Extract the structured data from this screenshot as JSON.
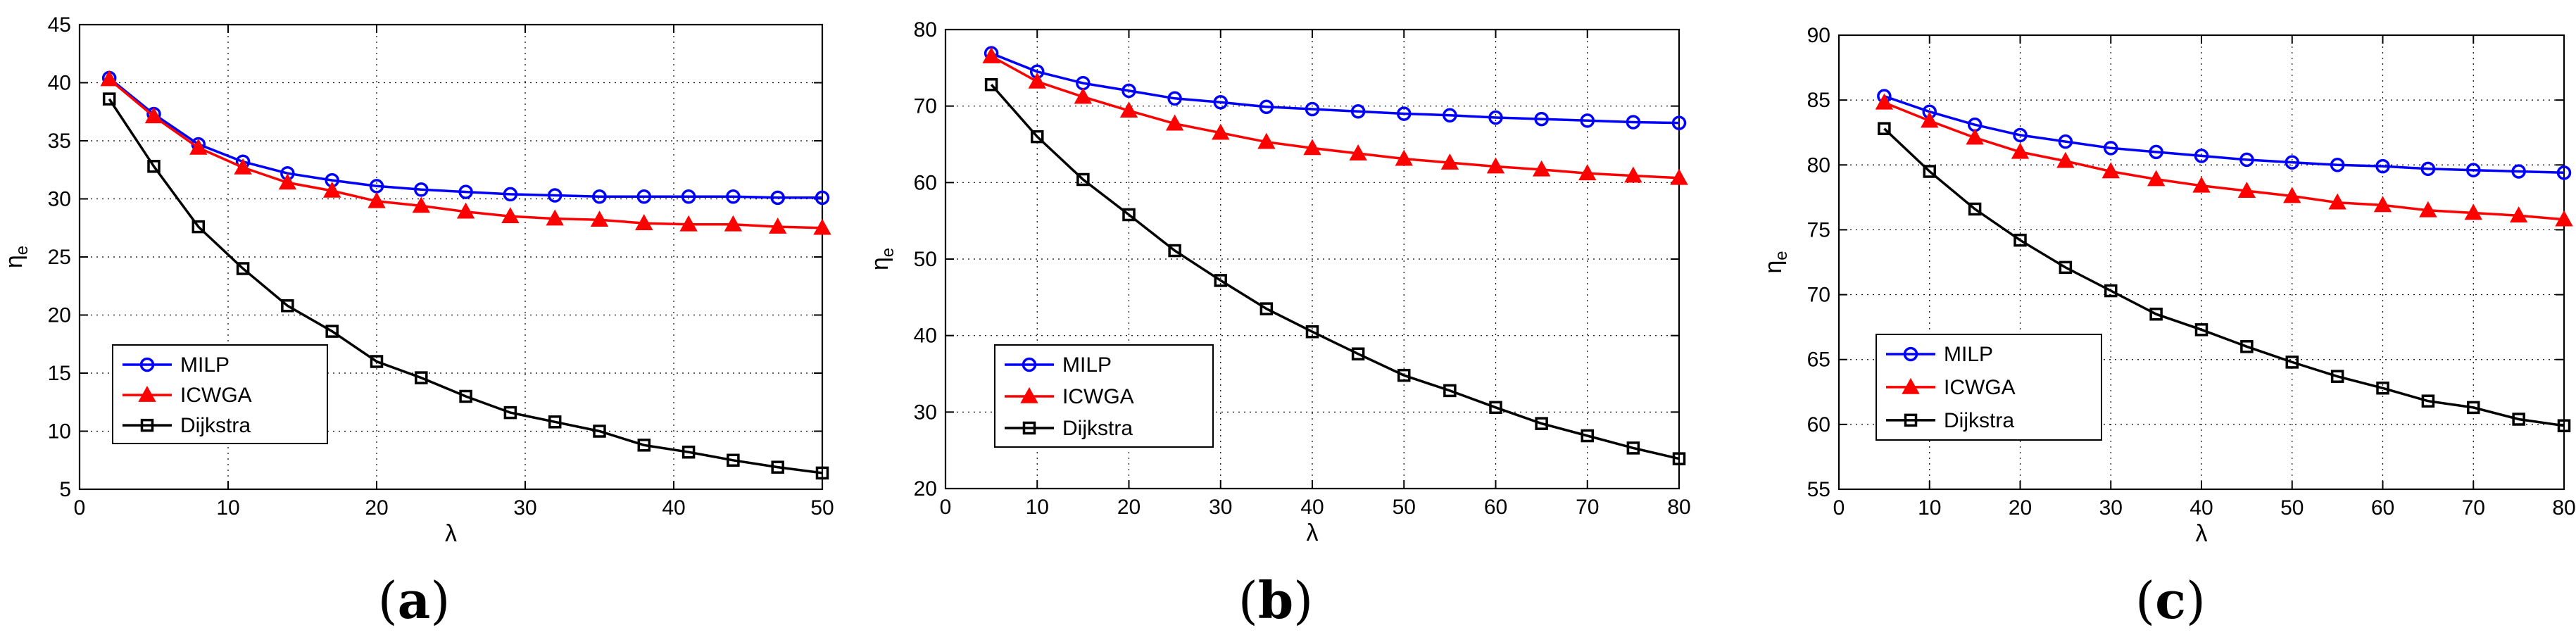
{
  "chart_data": [
    {
      "type": "line",
      "caption": {
        "open": "(",
        "letter": "a",
        "close": ")"
      },
      "xlabel": "λ",
      "ylabel": {
        "base": "η",
        "sub": "e"
      },
      "xlim": [
        0,
        50
      ],
      "ylim": [
        5,
        45
      ],
      "xticks": [
        0,
        10,
        20,
        30,
        40,
        50
      ],
      "yticks": [
        5,
        10,
        15,
        20,
        25,
        30,
        35,
        40,
        45
      ],
      "grid": true,
      "legend": "bottom-left",
      "x": [
        2,
        5,
        8,
        11,
        14,
        17,
        20,
        23,
        26,
        29,
        32,
        35,
        38,
        41,
        44,
        47,
        50
      ],
      "series": [
        {
          "name": "MILP",
          "color": "#0000ff",
          "marker": "circle",
          "values": [
            40.4,
            37.3,
            34.7,
            33.2,
            32.2,
            31.6,
            31.1,
            30.8,
            30.6,
            30.4,
            30.3,
            30.2,
            30.2,
            30.2,
            30.2,
            30.1,
            30.1
          ]
        },
        {
          "name": "ICWGA",
          "color": "#ff0000",
          "marker": "triangle",
          "values": [
            40.3,
            37.1,
            34.4,
            32.7,
            31.4,
            30.7,
            29.8,
            29.4,
            28.9,
            28.5,
            28.3,
            28.2,
            27.9,
            27.8,
            27.8,
            27.6,
            27.5
          ]
        },
        {
          "name": "Dijkstra",
          "color": "#000000",
          "marker": "square",
          "values": [
            38.6,
            32.8,
            27.6,
            24.0,
            20.8,
            18.6,
            16.0,
            14.6,
            13.0,
            11.6,
            10.8,
            10.0,
            8.8,
            8.2,
            7.5,
            6.9,
            6.4
          ]
        }
      ]
    },
    {
      "type": "line",
      "caption": {
        "open": "(",
        "letter": "b",
        "close": ")"
      },
      "xlabel": "λ",
      "ylabel": {
        "base": "η",
        "sub": "e"
      },
      "xlim": [
        0,
        80
      ],
      "ylim": [
        20,
        80
      ],
      "xticks": [
        0,
        10,
        20,
        30,
        40,
        50,
        60,
        70,
        80
      ],
      "yticks": [
        20,
        30,
        40,
        50,
        60,
        70,
        80
      ],
      "grid": true,
      "legend": "bottom-left",
      "x": [
        5,
        10,
        15,
        20,
        25,
        30,
        35,
        40,
        45,
        50,
        55,
        60,
        65,
        70,
        75,
        80
      ],
      "series": [
        {
          "name": "MILP",
          "color": "#0000ff",
          "marker": "circle",
          "values": [
            76.9,
            74.5,
            73.0,
            72.0,
            71.0,
            70.5,
            69.9,
            69.6,
            69.3,
            69.0,
            68.8,
            68.5,
            68.3,
            68.1,
            67.9,
            67.8
          ]
        },
        {
          "name": "ICWGA",
          "color": "#ff0000",
          "marker": "triangle",
          "values": [
            76.5,
            73.2,
            71.2,
            69.4,
            67.7,
            66.5,
            65.3,
            64.5,
            63.8,
            63.1,
            62.6,
            62.1,
            61.7,
            61.2,
            60.9,
            60.6
          ]
        },
        {
          "name": "Dijkstra",
          "color": "#000000",
          "marker": "square",
          "values": [
            72.8,
            66.0,
            60.4,
            55.8,
            51.1,
            47.2,
            43.5,
            40.5,
            37.6,
            34.8,
            32.8,
            30.6,
            28.5,
            26.9,
            25.3,
            23.9
          ]
        }
      ]
    },
    {
      "type": "line",
      "caption": {
        "open": "(",
        "letter": "c",
        "close": ")"
      },
      "xlabel": "λ",
      "ylabel": {
        "base": "η",
        "sub": "e"
      },
      "xlim": [
        0,
        80
      ],
      "ylim": [
        55,
        90
      ],
      "xticks": [
        0,
        10,
        20,
        30,
        40,
        50,
        60,
        70,
        80
      ],
      "yticks": [
        55,
        60,
        65,
        70,
        75,
        80,
        85,
        90
      ],
      "grid": true,
      "legend": "bottom-left",
      "x": [
        5,
        10,
        15,
        20,
        25,
        30,
        35,
        40,
        45,
        50,
        55,
        60,
        65,
        70,
        75,
        80
      ],
      "series": [
        {
          "name": "MILP",
          "color": "#0000ff",
          "marker": "circle",
          "values": [
            85.3,
            84.1,
            83.1,
            82.3,
            81.8,
            81.3,
            81.0,
            80.7,
            80.4,
            80.2,
            80.0,
            79.9,
            79.7,
            79.6,
            79.5,
            79.4
          ]
        },
        {
          "name": "ICWGA",
          "color": "#ff0000",
          "marker": "triangle",
          "values": [
            84.8,
            83.4,
            82.1,
            81.0,
            80.3,
            79.5,
            78.9,
            78.4,
            78.0,
            77.6,
            77.1,
            76.9,
            76.5,
            76.3,
            76.1,
            75.8
          ]
        },
        {
          "name": "Dijkstra",
          "color": "#000000",
          "marker": "square",
          "values": [
            82.8,
            79.5,
            76.6,
            74.2,
            72.1,
            70.3,
            68.5,
            67.3,
            66.0,
            64.8,
            63.7,
            62.8,
            61.8,
            61.3,
            60.4,
            59.9
          ]
        }
      ]
    }
  ]
}
